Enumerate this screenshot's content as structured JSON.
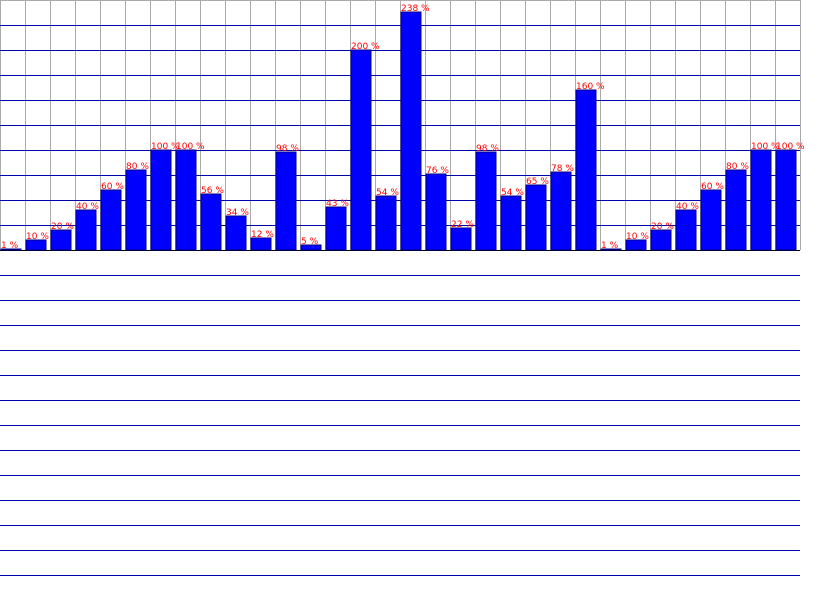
{
  "chart_data": {
    "type": "bar",
    "values": [
      1,
      10,
      20,
      40,
      60,
      80,
      100,
      100,
      56,
      34,
      12,
      98,
      5,
      43,
      200,
      54,
      238,
      76,
      22,
      98,
      54,
      65,
      78,
      160,
      1,
      10,
      20,
      40,
      60,
      80,
      100,
      100
    ],
    "labels": [
      "1 %",
      "10 %",
      "20 %",
      "40 %",
      "60 %",
      "80 %",
      "100 %",
      "100 %",
      "56 %",
      "34 %",
      "12 %",
      "98 %",
      "5 %",
      "43 %",
      "200 %",
      "54 %",
      "238 %",
      "76 %",
      "22 %",
      "98 %",
      "54 %",
      "65 %",
      "78 %",
      "160 %",
      "1 %",
      "10 %",
      "20 %",
      "40 %",
      "60 %",
      "80 %",
      "100 %",
      "100 %"
    ],
    "unit": "%",
    "ylim": [
      0,
      250
    ],
    "grid": true,
    "colors": {
      "bar": "#0000ff",
      "bar_stroke": "#000080",
      "label": "#ff0000",
      "grid_gray": "#aaaaaa",
      "grid_blue": "#0000aa",
      "baseline": "#000000"
    }
  }
}
